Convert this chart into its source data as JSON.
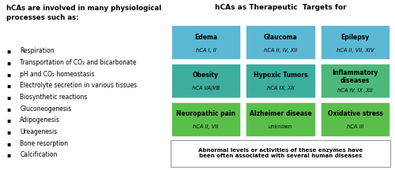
{
  "left_title": "hCAs are involved in many physiological\nprocesses such as:",
  "left_items": [
    "Respiration",
    "Transportation of CO₂ and bicarbonate",
    "pH and CO₂ homeostasis",
    "Electrolyte secretion in various tissues",
    "Biosynthetic reactions",
    "Gluconeogenesis",
    "Adipogenesis",
    "Ureagenesis",
    "Bone resorption",
    "Calcification"
  ],
  "right_title": "hCAs as Therapeutic  Targets for",
  "grid": [
    [
      {
        "label": "Edema",
        "sublabel": "hCA I, II",
        "color": "#5BB8D4"
      },
      {
        "label": "Glaucoma",
        "sublabel": "hCA II, IV, XII",
        "color": "#5BB8D4"
      },
      {
        "label": "Epilepsy",
        "sublabel": "hCA II, VII, XIV",
        "color": "#5BB8D4"
      }
    ],
    [
      {
        "label": "Obesity",
        "sublabel": "hCA VA/VB",
        "color": "#3DADA0"
      },
      {
        "label": "Hypoxic Tumors",
        "sublabel": "hCA IX, XII",
        "color": "#3DADA0"
      },
      {
        "label": "Inflammatory\ndiseases",
        "sublabel": "hCA IV, IX ,XII",
        "color": "#4CB87A"
      }
    ],
    [
      {
        "label": "Neuropathic pain",
        "sublabel": "hCA II, VII",
        "color": "#5ABF4A"
      },
      {
        "label": "Alzheimer disease",
        "sublabel": "unknown",
        "color": "#5ABF4A"
      },
      {
        "label": "Oxidative stress",
        "sublabel": "hCA III",
        "color": "#5ABF4A"
      }
    ]
  ],
  "bottom_text": "Abnormal levels or activities of these enzymes have\nbeen often associated with several human diseases",
  "bg_color": "#FFFFFF"
}
